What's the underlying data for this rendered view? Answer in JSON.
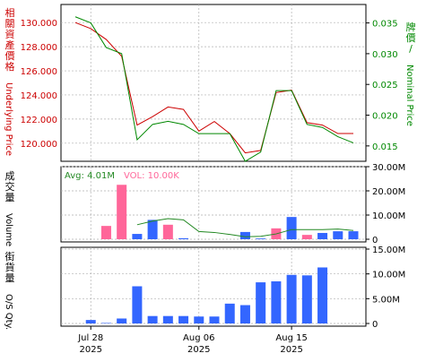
{
  "colors": {
    "underlying": "#cc0000",
    "nominal": "#008800",
    "volume_up": "#ff6699",
    "volume_down": "#3366ff",
    "avg_line": "#228822",
    "os_qty": "#3366ff",
    "grid": "#b0b0b0",
    "frame": "#000000"
  },
  "chart_data": [
    {
      "type": "line",
      "ylabel_left": "相關資產價格Underlying Price",
      "ylabel_right": "牌價/Nominal Price",
      "grid": true,
      "series": [
        {
          "name": "Underlying Price",
          "axis": "left",
          "values": [
            130.0,
            129.5,
            128.6,
            127.2,
            121.5,
            122.2,
            123.0,
            122.8,
            121.0,
            121.8,
            120.8,
            119.2,
            119.4,
            124.2,
            124.4,
            121.7,
            121.5,
            120.8,
            120.8
          ],
          "ylim": [
            118.5,
            131.5
          ],
          "ticks": [
            120.0,
            122.0,
            124.0,
            126.0,
            128.0,
            130.0
          ],
          "tick_labels": [
            "120.000",
            "122.000",
            "124.000",
            "126.000",
            "128.000",
            "130.000"
          ]
        },
        {
          "name": "Nominal Price",
          "axis": "right",
          "values": [
            0.036,
            0.035,
            0.031,
            0.03,
            0.016,
            0.0185,
            0.019,
            0.0185,
            0.017,
            0.017,
            0.017,
            0.0125,
            0.014,
            0.024,
            0.024,
            0.0185,
            0.018,
            0.0165,
            0.0155
          ],
          "ylim": [
            0.0125,
            0.038
          ],
          "ticks": [
            0.015,
            0.02,
            0.025,
            0.03,
            0.035
          ],
          "tick_labels": [
            "0.015",
            "0.020",
            "0.025",
            "0.030",
            "0.035"
          ]
        }
      ]
    },
    {
      "type": "bar",
      "ylabel": "成交量Volume",
      "legend": [
        "Avg: 4.01M",
        "VOL: 10.00K"
      ],
      "ylim": [
        0,
        30000000
      ],
      "ticks": [
        0,
        10000000,
        20000000,
        30000000
      ],
      "tick_labels": [
        "0",
        "10.00M",
        "20.00M",
        "30.00M"
      ],
      "bars": [
        {
          "value": 0,
          "dir": "up"
        },
        {
          "value": 0,
          "dir": "up"
        },
        {
          "value": 5500000,
          "dir": "up"
        },
        {
          "value": 22500000,
          "dir": "up"
        },
        {
          "value": 2200000,
          "dir": "down"
        },
        {
          "value": 8000000,
          "dir": "down"
        },
        {
          "value": 6000000,
          "dir": "up"
        },
        {
          "value": 400000,
          "dir": "down"
        },
        {
          "value": 0,
          "dir": "up"
        },
        {
          "value": 0,
          "dir": "up"
        },
        {
          "value": 0,
          "dir": "up"
        },
        {
          "value": 3000000,
          "dir": "down"
        },
        {
          "value": 300000,
          "dir": "down"
        },
        {
          "value": 4500000,
          "dir": "up"
        },
        {
          "value": 9200000,
          "dir": "down"
        },
        {
          "value": 1800000,
          "dir": "up"
        },
        {
          "value": 2600000,
          "dir": "down"
        },
        {
          "value": 3300000,
          "dir": "down"
        },
        {
          "value": 3300000,
          "dir": "down"
        }
      ],
      "avg_line": [
        null,
        null,
        null,
        null,
        6000000,
        7500000,
        8500000,
        8000000,
        3200000,
        2800000,
        2000000,
        1000000,
        1200000,
        2200000,
        4000000,
        4000000,
        4000000,
        4200000,
        3600000
      ]
    },
    {
      "type": "bar",
      "ylabel": "街貨量O/S Qty.",
      "ylim": [
        0,
        15000000
      ],
      "ticks": [
        0,
        5000000,
        10000000,
        15000000
      ],
      "tick_labels": [
        "0",
        "5.00M",
        "10.00M",
        "15.00M"
      ],
      "values": [
        0,
        700000,
        100000,
        1000000,
        7500000,
        1500000,
        1500000,
        1500000,
        1400000,
        1400000,
        4000000,
        3700000,
        8300000,
        8500000,
        9800000,
        9700000,
        11300000,
        0,
        0
      ],
      "x_tick_labels": [
        {
          "index": 1,
          "line1": "Jul 28",
          "line2": "2025"
        },
        {
          "index": 8,
          "line1": "Aug 06",
          "line2": "2025"
        },
        {
          "index": 14,
          "line1": "Aug 15",
          "line2": "2025"
        }
      ]
    }
  ]
}
